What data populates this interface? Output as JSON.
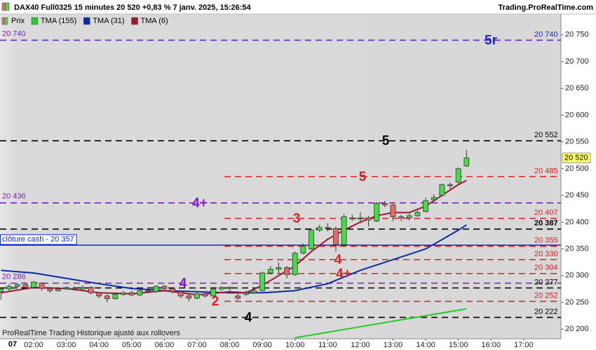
{
  "chart_data": {
    "type": "candlestick",
    "title": "DAX40 Full0325 15 minutes 20 520 +0,83 % 7 janv. 2025, 15:26:54",
    "source": "Trading.ProRealTime.com",
    "footer": "ProRealTime Trading  Historique ajusté aux rollovers",
    "day_label": "07",
    "price_name": "Prix",
    "up_color": "#44dd44",
    "down_color": "#e46a6a",
    "x": [
      1,
      1.25,
      1.5,
      1.75,
      2,
      2.25,
      2.5,
      2.75,
      3,
      3.25,
      3.5,
      3.75,
      4,
      4.25,
      4.5,
      4.75,
      5,
      5.25,
      5.5,
      5.75,
      6,
      6.25,
      6.5,
      6.75,
      7,
      7.25,
      7.5,
      7.75,
      8,
      8.25,
      8.5,
      8.75,
      9,
      9.25,
      9.5,
      9.75,
      10,
      10.25,
      10.5,
      10.75,
      11,
      11.25,
      11.5,
      11.75,
      12,
      12.25,
      12.5,
      12.75,
      13,
      13.25,
      13.5,
      13.75,
      14,
      14.25,
      14.5,
      14.75,
      15,
      15.25
    ],
    "open": [
      20270,
      20275,
      20280,
      20283,
      20278,
      20286,
      20276,
      20272,
      20275,
      20277,
      20275,
      20278,
      20268,
      20262,
      20257,
      20265,
      20268,
      20264,
      20272,
      20270,
      20280,
      20276,
      20270,
      20262,
      20258,
      20266,
      20262,
      20275,
      20278,
      20262,
      20265,
      20268,
      20272,
      20305,
      20312,
      20315,
      20302,
      20342,
      20350,
      20385,
      20390,
      20388,
      20358,
      20408,
      20406,
      20408,
      20402,
      20435,
      20432,
      20410,
      20408,
      20412,
      20420,
      20442,
      20450,
      20470,
      20475,
      20505
    ],
    "high": [
      20278,
      20285,
      20286,
      20287,
      20290,
      20288,
      20279,
      20278,
      20280,
      20280,
      20282,
      20280,
      20270,
      20265,
      20268,
      20271,
      20272,
      20276,
      20275,
      20282,
      20283,
      20278,
      20272,
      20265,
      20270,
      20268,
      20278,
      20280,
      20280,
      20268,
      20272,
      20276,
      20308,
      20318,
      20325,
      20318,
      20345,
      20360,
      20388,
      20395,
      20398,
      20392,
      20415,
      20414,
      20418,
      20412,
      20438,
      20440,
      20434,
      20414,
      20416,
      20422,
      20446,
      20452,
      20472,
      20474,
      20502,
      20535
    ],
    "low": [
      20255,
      20270,
      20276,
      20275,
      20276,
      20272,
      20268,
      20270,
      20273,
      20272,
      20273,
      20265,
      20258,
      20250,
      20255,
      20262,
      20262,
      20262,
      20267,
      20268,
      20272,
      20267,
      20258,
      20252,
      20256,
      20259,
      20260,
      20272,
      20272,
      20254,
      20262,
      20266,
      20270,
      20302,
      20305,
      20295,
      20300,
      20340,
      20348,
      20382,
      20383,
      20345,
      20355,
      20402,
      20400,
      20392,
      20400,
      20428,
      20402,
      20402,
      20403,
      20410,
      20418,
      20438,
      20448,
      20462,
      20470,
      20503
    ],
    "close": [
      20275,
      20280,
      20283,
      20278,
      20288,
      20276,
      20272,
      20275,
      20277,
      20275,
      20278,
      20268,
      20262,
      20257,
      20265,
      20268,
      20264,
      20272,
      20270,
      20280,
      20276,
      20270,
      20262,
      20258,
      20266,
      20262,
      20275,
      20278,
      20276,
      20258,
      20268,
      20272,
      20305,
      20312,
      20315,
      20302,
      20342,
      20355,
      20385,
      20390,
      20388,
      20358,
      20410,
      20406,
      20408,
      20404,
      20435,
      20432,
      20410,
      20408,
      20412,
      20418,
      20440,
      20446,
      20470,
      20468,
      20500,
      20520
    ],
    "lines": [
      {
        "name": "TMA (155)",
        "color": "#22cc22",
        "x": [
          10,
          15.25
        ],
        "values": [
          20184,
          20238
        ]
      },
      {
        "name": "TMA (31)",
        "color": "#0b2aa8",
        "x": [
          1,
          2,
          3,
          4,
          5,
          6,
          7,
          8,
          9,
          10,
          11,
          12,
          13,
          14,
          15,
          15.25
        ],
        "values": [
          20310,
          20305,
          20295,
          20285,
          20276,
          20272,
          20270,
          20268,
          20268,
          20272,
          20285,
          20310,
          20330,
          20350,
          20385,
          20395
        ]
      },
      {
        "name": "TMA (6)",
        "color": "#a01830",
        "x": [
          1,
          2,
          3,
          4,
          5,
          6,
          7,
          8,
          8.5,
          9,
          9.5,
          10,
          10.5,
          11,
          11.5,
          12,
          12.5,
          13,
          13.5,
          14,
          14.5,
          15,
          15.25
        ],
        "values": [
          20268,
          20278,
          20276,
          20268,
          20266,
          20272,
          20264,
          20270,
          20268,
          20282,
          20300,
          20318,
          20345,
          20368,
          20385,
          20400,
          20412,
          20418,
          20418,
          20430,
          20450,
          20470,
          20478
        ]
      }
    ],
    "levels": [
      {
        "value": 20740,
        "label": "20 740",
        "side": "both",
        "color": "#7a1fc4",
        "label_color": "#1a2ad0",
        "style": "dashed",
        "extent": "full",
        "note": "5r",
        "note_color": "#1a2ad0"
      },
      {
        "value": 20552,
        "label": "20 552",
        "side": "right",
        "color": "#000000",
        "style": "dashed",
        "extent": "full",
        "note": "5"
      },
      {
        "value": 20485,
        "label": "20 485",
        "side": "right",
        "color": "#e02020",
        "style": "dashed",
        "extent": "short",
        "note": "5"
      },
      {
        "value": 20436,
        "label": "20 436",
        "side": "left",
        "color": "#7a1fc4",
        "style": "dashed",
        "extent": "full",
        "note": "4+"
      },
      {
        "value": 20407,
        "label": "20 407",
        "side": "right",
        "color": "#e02020",
        "style": "dashed",
        "extent": "short",
        "note": "3"
      },
      {
        "value": 20387,
        "label": "20 387",
        "side": "right",
        "color": "#000000",
        "style": "dashed",
        "extent": "full"
      },
      {
        "value": 20357,
        "label": "clôture cash -  20 357",
        "side": "left",
        "color": "#0b2ad0",
        "style": "solid",
        "extent": "full"
      },
      {
        "value": 20355,
        "label": "20 355",
        "side": "right",
        "color": "#e02020",
        "style": "dashed",
        "extent": "short"
      },
      {
        "value": 20330,
        "label": "20 330",
        "side": "right",
        "color": "#e02020",
        "style": "dashed",
        "extent": "short",
        "note": "4"
      },
      {
        "value": 20304,
        "label": "20 304",
        "side": "right",
        "color": "#e02020",
        "style": "dashed",
        "extent": "short",
        "note": "4+"
      },
      {
        "value": 20286,
        "label": "20 286",
        "side": "left",
        "color": "#7a1fc4",
        "style": "dashed",
        "extent": "full",
        "note": "4"
      },
      {
        "value": 20277,
        "label": "20 277",
        "side": "right",
        "color": "#000000",
        "style": "dashed",
        "extent": "full"
      },
      {
        "value": 20252,
        "label": "20 252",
        "side": "right",
        "color": "#e02020",
        "style": "dashed",
        "extent": "short",
        "note": "2"
      },
      {
        "value": 20222,
        "label": "20 222",
        "side": "right",
        "color": "#000000",
        "style": "dashed",
        "extent": "full",
        "note": "4"
      }
    ],
    "last_price": {
      "value": 20520,
      "label": "20 520"
    },
    "xlim": [
      0.97,
      18.14
    ],
    "ylim": [
      20182,
      20789
    ],
    "xticks": [
      {
        "value": 2,
        "label": "02:00"
      },
      {
        "value": 3,
        "label": "03:00"
      },
      {
        "value": 4,
        "label": "04:00"
      },
      {
        "value": 5,
        "label": "05:00"
      },
      {
        "value": 6,
        "label": "06:00"
      },
      {
        "value": 7,
        "label": "07:00"
      },
      {
        "value": 8,
        "label": "08:00"
      },
      {
        "value": 9,
        "label": "09:00"
      },
      {
        "value": 10,
        "label": "10:00"
      },
      {
        "value": 11,
        "label": "11:00"
      },
      {
        "value": 12,
        "label": "12:00"
      },
      {
        "value": 13,
        "label": "13:00"
      },
      {
        "value": 14,
        "label": "14:00"
      },
      {
        "value": 15,
        "label": "15:00"
      },
      {
        "value": 16,
        "label": "16:00"
      },
      {
        "value": 17,
        "label": "17:00"
      }
    ],
    "yticks": [
      {
        "value": 20200,
        "label": "20 200"
      },
      {
        "value": 20250,
        "label": "20 250"
      },
      {
        "value": 20300,
        "label": "20 300"
      },
      {
        "value": 20350,
        "label": "20 350"
      },
      {
        "value": 20400,
        "label": "20 400"
      },
      {
        "value": 20450,
        "label": "20 450"
      },
      {
        "value": 20500,
        "label": "20 500"
      },
      {
        "value": 20550,
        "label": "20 550"
      },
      {
        "value": 20600,
        "label": "20 600"
      },
      {
        "value": 20650,
        "label": "20 650"
      },
      {
        "value": 20700,
        "label": "20 700"
      },
      {
        "value": 20750,
        "label": "20 750"
      }
    ]
  }
}
